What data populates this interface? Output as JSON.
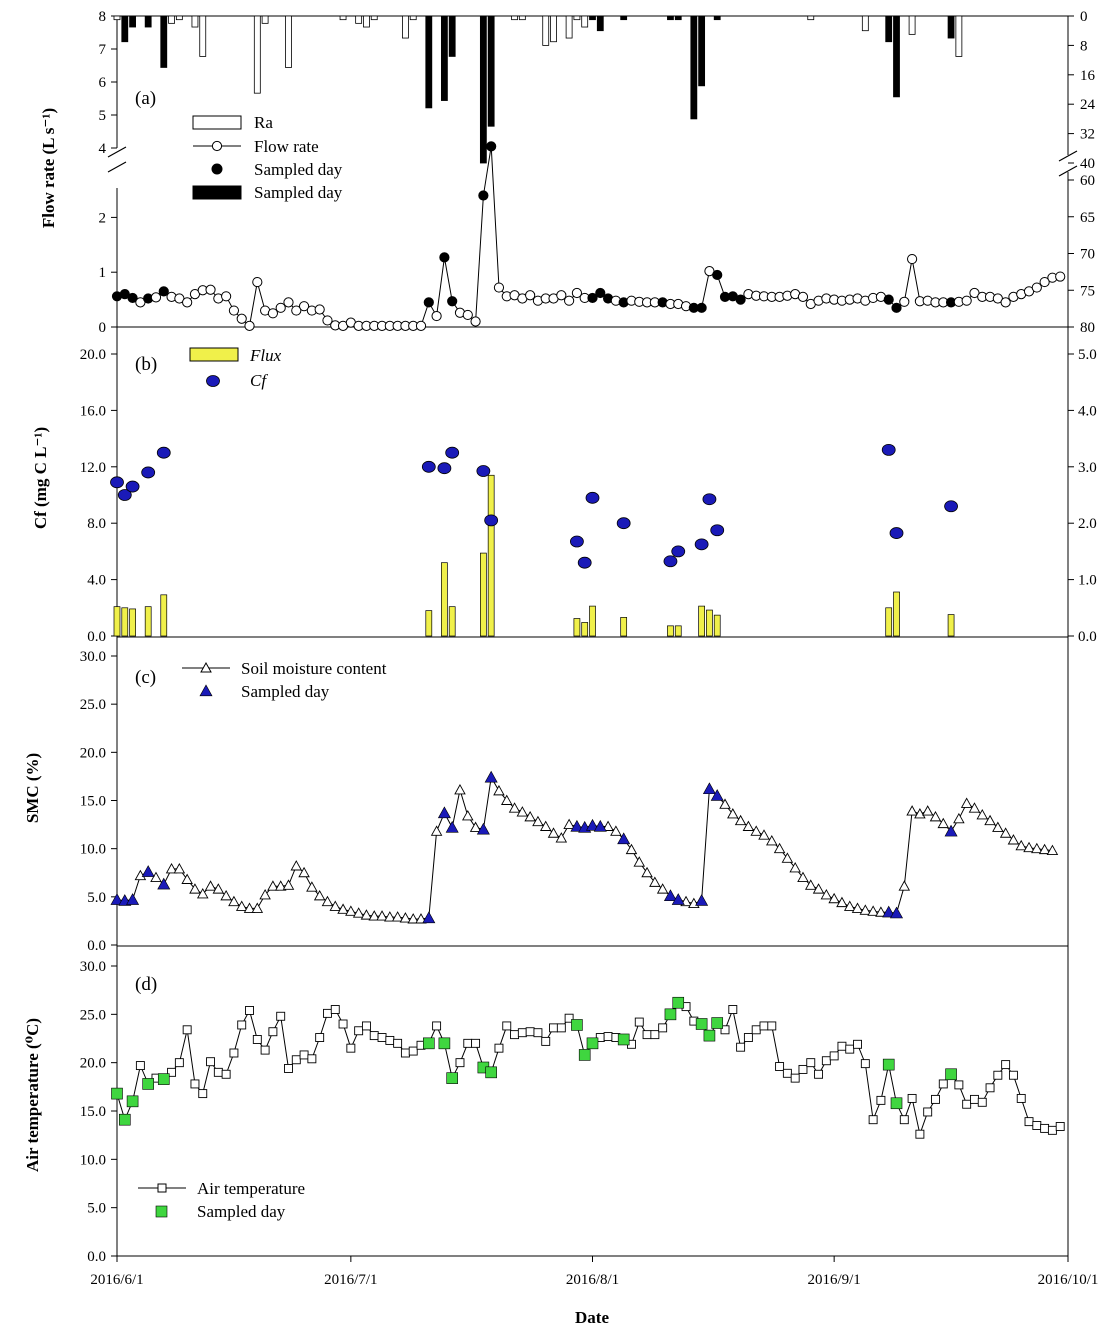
{
  "chart_data": {
    "type": "line",
    "dates": [
      "2016/6/1",
      "2016/6/2",
      "2016/6/3",
      "2016/6/4",
      "2016/6/5",
      "2016/6/6",
      "2016/6/7",
      "2016/6/8",
      "2016/6/9",
      "2016/6/10",
      "2016/6/11",
      "2016/6/12",
      "2016/6/13",
      "2016/6/14",
      "2016/6/15",
      "2016/6/16",
      "2016/6/17",
      "2016/6/18",
      "2016/6/19",
      "2016/6/20",
      "2016/6/21",
      "2016/6/22",
      "2016/6/23",
      "2016/6/24",
      "2016/6/25",
      "2016/6/26",
      "2016/6/27",
      "2016/6/28",
      "2016/6/29",
      "2016/6/30",
      "2016/7/1",
      "2016/7/2",
      "2016/7/3",
      "2016/7/4",
      "2016/7/5",
      "2016/7/6",
      "2016/7/7",
      "2016/7/8",
      "2016/7/9",
      "2016/7/10",
      "2016/7/11",
      "2016/7/12",
      "2016/7/13",
      "2016/7/14",
      "2016/7/15",
      "2016/7/16",
      "2016/7/17",
      "2016/7/18",
      "2016/7/19",
      "2016/7/20",
      "2016/7/21",
      "2016/7/22",
      "2016/7/23",
      "2016/7/24",
      "2016/7/25",
      "2016/7/26",
      "2016/7/27",
      "2016/7/28",
      "2016/7/29",
      "2016/7/30",
      "2016/7/31",
      "2016/8/1",
      "2016/8/2",
      "2016/8/3",
      "2016/8/4",
      "2016/8/5",
      "2016/8/6",
      "2016/8/7",
      "2016/8/8",
      "2016/8/9",
      "2016/8/10",
      "2016/8/11",
      "2016/8/12",
      "2016/8/13",
      "2016/8/14",
      "2016/8/15",
      "2016/8/16",
      "2016/8/17",
      "2016/8/18",
      "2016/8/19",
      "2016/8/20",
      "2016/8/21",
      "2016/8/22",
      "2016/8/23",
      "2016/8/24",
      "2016/8/25",
      "2016/8/26",
      "2016/8/27",
      "2016/8/28",
      "2016/8/29",
      "2016/8/30",
      "2016/8/31",
      "2016/9/1",
      "2016/9/2",
      "2016/9/3",
      "2016/9/4",
      "2016/9/5",
      "2016/9/6",
      "2016/9/7",
      "2016/9/8",
      "2016/9/9",
      "2016/9/10",
      "2016/9/11",
      "2016/9/12",
      "2016/9/13",
      "2016/9/14",
      "2016/9/15",
      "2016/9/16",
      "2016/9/17",
      "2016/9/18",
      "2016/9/19",
      "2016/9/20",
      "2016/9/21",
      "2016/9/22",
      "2016/9/23",
      "2016/9/24",
      "2016/9/25",
      "2016/9/26",
      "2016/9/27",
      "2016/9/28",
      "2016/9/29",
      "2016/9/30",
      "2016/10/1"
    ],
    "x_tick_labels": [
      "2016/6/1",
      "2016/7/1",
      "2016/8/1",
      "2016/9/1",
      "2016/10/1"
    ],
    "xlabel": "Date",
    "panels": {
      "a": {
        "tag": "(a)",
        "ylabel": "Flow rate (L s⁻¹)",
        "left_ticks_lower": [
          "0",
          "1",
          "2"
        ],
        "left_ticks_upper": [
          "4",
          "5",
          "6",
          "7",
          "8"
        ],
        "right_ticks_upper": [
          "0",
          "8",
          "16",
          "24",
          "32",
          "40"
        ],
        "right_ticks_lower": [
          "60",
          "65",
          "70",
          "75",
          "80"
        ],
        "legend": [
          "Ra",
          "Flow rate",
          "Sampled day",
          "Sampled day"
        ],
        "flow_rate": [
          0.56,
          0.6,
          0.53,
          0.45,
          0.52,
          0.54,
          0.65,
          0.55,
          0.52,
          0.45,
          0.6,
          0.67,
          0.68,
          0.52,
          0.56,
          0.3,
          0.15,
          0.02,
          0.82,
          0.3,
          0.25,
          0.35,
          0.45,
          0.3,
          0.38,
          0.3,
          0.32,
          0.12,
          0.03,
          0.02,
          0.08,
          0.02,
          0.02,
          0.02,
          0.02,
          0.02,
          0.02,
          0.02,
          0.02,
          0.02,
          0.45,
          0.2,
          1.27,
          0.47,
          0.26,
          0.22,
          0.1,
          2.4,
          4.05,
          0.72,
          0.56,
          0.58,
          0.52,
          0.58,
          0.48,
          0.52,
          0.52,
          0.58,
          0.48,
          0.62,
          0.53,
          0.53,
          0.62,
          0.52,
          0.48,
          0.45,
          0.48,
          0.46,
          0.45,
          0.45,
          0.45,
          0.42,
          0.42,
          0.38,
          0.35,
          0.35,
          1.02,
          0.95,
          0.55,
          0.56,
          0.5,
          0.6,
          0.57,
          0.56,
          0.55,
          0.55,
          0.57,
          0.6,
          0.55,
          0.42,
          0.48,
          0.52,
          0.5,
          0.48,
          0.5,
          0.52,
          0.48,
          0.53,
          0.55,
          0.5,
          0.35,
          0.46,
          1.24,
          0.47,
          0.48,
          0.45,
          0.45,
          0.45,
          0.46,
          0.48,
          0.62,
          0.55,
          0.55,
          0.52,
          0.45,
          0.55,
          0.6,
          0.65,
          0.72,
          0.82,
          0.9,
          0.92
        ],
        "flow_sampled_days": [
          0,
          1,
          2,
          4,
          6,
          40,
          42,
          43,
          47,
          48,
          61,
          62,
          63,
          65,
          70,
          74,
          75,
          77,
          78,
          79,
          80,
          99,
          100,
          107
        ],
        "rainfall_mm": [
          {
            "day": 0,
            "v": 1
          },
          {
            "day": 1,
            "v": 7
          },
          {
            "day": 2,
            "v": 3
          },
          {
            "day": 4,
            "v": 3
          },
          {
            "day": 6,
            "v": 14
          },
          {
            "day": 7,
            "v": 2
          },
          {
            "day": 8,
            "v": 1
          },
          {
            "day": 10,
            "v": 3
          },
          {
            "day": 11,
            "v": 11
          },
          {
            "day": 18,
            "v": 21
          },
          {
            "day": 19,
            "v": 2
          },
          {
            "day": 22,
            "v": 14
          },
          {
            "day": 29,
            "v": 1
          },
          {
            "day": 31,
            "v": 2
          },
          {
            "day": 32,
            "v": 3
          },
          {
            "day": 33,
            "v": 1
          },
          {
            "day": 37,
            "v": 6
          },
          {
            "day": 38,
            "v": 1
          },
          {
            "day": 40,
            "v": 25
          },
          {
            "day": 42,
            "v": 23
          },
          {
            "day": 43,
            "v": 11
          },
          {
            "day": 47,
            "v": 40
          },
          {
            "day": 48,
            "v": 30
          },
          {
            "day": 51,
            "v": 1
          },
          {
            "day": 52,
            "v": 1
          },
          {
            "day": 55,
            "v": 8
          },
          {
            "day": 56,
            "v": 7
          },
          {
            "day": 58,
            "v": 6
          },
          {
            "day": 59,
            "v": 1
          },
          {
            "day": 60,
            "v": 3
          },
          {
            "day": 61,
            "v": 1
          },
          {
            "day": 62,
            "v": 4
          },
          {
            "day": 65,
            "v": 1
          },
          {
            "day": 71,
            "v": 1
          },
          {
            "day": 72,
            "v": 1
          },
          {
            "day": 74,
            "v": 28
          },
          {
            "day": 75,
            "v": 19
          },
          {
            "day": 77,
            "v": 1
          },
          {
            "day": 89,
            "v": 1
          },
          {
            "day": 96,
            "v": 4
          },
          {
            "day": 99,
            "v": 7
          },
          {
            "day": 100,
            "v": 22
          },
          {
            "day": 102,
            "v": 5
          },
          {
            "day": 107,
            "v": 6
          },
          {
            "day": 108,
            "v": 11
          }
        ],
        "rain_sampled_days": [
          1,
          2,
          4,
          6,
          40,
          42,
          43,
          47,
          48,
          61,
          62,
          63,
          65,
          71,
          72,
          74,
          75,
          77,
          99,
          100,
          107
        ]
      },
      "b": {
        "tag": "(b)",
        "ylabel": "Cf (mg C L⁻¹)",
        "left_ticks": [
          "0.0",
          "4.0",
          "8.0",
          "12.0",
          "16.0",
          "20.0"
        ],
        "right_ticks": [
          "0.0",
          "1.0",
          "2.0",
          "3.0",
          "4.0",
          "5.0"
        ],
        "legend": [
          "Flux",
          "Cf"
        ],
        "cf": [
          {
            "day": 0,
            "v": 10.9
          },
          {
            "day": 1,
            "v": 10.0
          },
          {
            "day": 2,
            "v": 10.6
          },
          {
            "day": 4,
            "v": 11.6
          },
          {
            "day": 6,
            "v": 13.0
          },
          {
            "day": 40,
            "v": 12.0
          },
          {
            "day": 42,
            "v": 11.9
          },
          {
            "day": 43,
            "v": 13.0
          },
          {
            "day": 47,
            "v": 11.7
          },
          {
            "day": 48,
            "v": 8.2
          },
          {
            "day": 59,
            "v": 6.7
          },
          {
            "day": 60,
            "v": 5.2
          },
          {
            "day": 61,
            "v": 9.8
          },
          {
            "day": 65,
            "v": 8.0
          },
          {
            "day": 71,
            "v": 5.3
          },
          {
            "day": 72,
            "v": 6.0
          },
          {
            "day": 75,
            "v": 6.5
          },
          {
            "day": 76,
            "v": 9.7
          },
          {
            "day": 77,
            "v": 7.5
          },
          {
            "day": 99,
            "v": 13.2
          },
          {
            "day": 100,
            "v": 7.3
          },
          {
            "day": 107,
            "v": 9.2
          }
        ],
        "flux": [
          {
            "day": 0,
            "v": 0.52
          },
          {
            "day": 1,
            "v": 0.5
          },
          {
            "day": 2,
            "v": 0.48
          },
          {
            "day": 4,
            "v": 0.52
          },
          {
            "day": 6,
            "v": 0.73
          },
          {
            "day": 40,
            "v": 0.45
          },
          {
            "day": 42,
            "v": 1.3
          },
          {
            "day": 43,
            "v": 0.52
          },
          {
            "day": 47,
            "v": 1.47
          },
          {
            "day": 48,
            "v": 2.85
          },
          {
            "day": 59,
            "v": 0.31
          },
          {
            "day": 60,
            "v": 0.24
          },
          {
            "day": 61,
            "v": 0.53
          },
          {
            "day": 65,
            "v": 0.33
          },
          {
            "day": 71,
            "v": 0.18
          },
          {
            "day": 72,
            "v": 0.18
          },
          {
            "day": 75,
            "v": 0.53
          },
          {
            "day": 76,
            "v": 0.46
          },
          {
            "day": 77,
            "v": 0.37
          },
          {
            "day": 99,
            "v": 0.5
          },
          {
            "day": 100,
            "v": 0.78
          },
          {
            "day": 107,
            "v": 0.38
          }
        ]
      },
      "c": {
        "tag": "(c)",
        "ylabel": "SMC (%)",
        "ticks": [
          "0.0",
          "5.0",
          "10.0",
          "15.0",
          "20.0",
          "25.0",
          "30.0"
        ],
        "legend": [
          "Soil moisture content",
          "Sampled day"
        ],
        "smc": [
          4.7,
          4.6,
          4.7,
          7.2,
          7.6,
          7.0,
          6.3,
          7.9,
          7.9,
          6.8,
          5.8,
          5.3,
          6.1,
          5.8,
          5.1,
          4.5,
          4.0,
          3.8,
          3.8,
          5.2,
          6.1,
          6.1,
          6.2,
          8.2,
          7.5,
          6.0,
          5.1,
          4.5,
          4.0,
          3.7,
          3.5,
          3.3,
          3.1,
          3.0,
          3.0,
          2.9,
          2.9,
          2.8,
          2.7,
          2.7,
          2.8,
          11.8,
          13.7,
          12.2,
          16.1,
          13.4,
          12.2,
          12.0,
          17.4,
          16.0,
          15.0,
          14.2,
          13.8,
          13.3,
          12.8,
          12.3,
          11.6,
          11.1,
          12.5,
          12.3,
          12.2,
          12.4,
          12.3,
          12.3,
          11.8,
          11.0,
          9.9,
          8.6,
          7.5,
          6.5,
          5.8,
          5.1,
          4.7,
          4.5,
          4.3,
          4.6,
          16.2,
          15.5,
          14.6,
          13.6,
          12.9,
          12.3,
          11.8,
          11.4,
          10.8,
          10.0,
          9.0,
          8.0,
          7.0,
          6.2,
          5.8,
          5.2,
          4.8,
          4.4,
          4.0,
          3.8,
          3.6,
          3.5,
          3.4,
          3.4,
          3.3,
          6.1,
          13.9,
          13.6,
          13.9,
          13.3,
          12.6,
          11.8,
          13.1,
          14.7,
          14.2,
          13.5,
          12.9,
          12.2,
          11.6,
          10.9,
          10.3,
          10.1,
          10.0,
          9.9,
          9.8
        ],
        "sampled_days": [
          0,
          1,
          2,
          4,
          6,
          40,
          42,
          43,
          47,
          48,
          59,
          60,
          61,
          62,
          65,
          71,
          72,
          75,
          76,
          77,
          99,
          100,
          107
        ]
      },
      "d": {
        "tag": "(d)",
        "ylabel": "Air temperature (⁰C)",
        "ticks": [
          "0.0",
          "5.0",
          "10.0",
          "15.0",
          "20.0",
          "25.0",
          "30.0"
        ],
        "legend": [
          "Air temperature",
          "Sampled day"
        ],
        "temp": [
          16.8,
          14.1,
          16.0,
          19.7,
          17.8,
          18.4,
          18.3,
          19.0,
          20.0,
          23.4,
          17.8,
          16.8,
          20.1,
          19.0,
          18.8,
          21.0,
          23.9,
          25.4,
          22.4,
          21.3,
          23.2,
          24.8,
          19.4,
          20.3,
          20.8,
          20.4,
          22.6,
          25.1,
          25.5,
          24.0,
          21.5,
          23.3,
          23.8,
          22.8,
          22.6,
          22.3,
          22.0,
          21.0,
          21.2,
          21.8,
          22.0,
          23.8,
          22.0,
          18.4,
          20.0,
          22.0,
          22.0,
          19.5,
          19.0,
          21.5,
          23.8,
          22.9,
          23.1,
          23.2,
          23.1,
          22.2,
          23.6,
          23.6,
          24.6,
          23.9,
          20.8,
          22.0,
          22.6,
          22.7,
          22.6,
          22.4,
          21.9,
          24.2,
          22.9,
          22.9,
          23.6,
          25.0,
          26.2,
          25.8,
          24.3,
          24.0,
          22.8,
          24.1,
          23.4,
          25.5,
          21.6,
          22.6,
          23.4,
          23.8,
          23.8,
          19.6,
          18.9,
          18.4,
          19.3,
          20.0,
          18.8,
          20.2,
          20.7,
          21.7,
          21.4,
          21.9,
          19.9,
          14.1,
          16.1,
          19.8,
          15.8,
          14.1,
          16.3,
          12.6,
          14.9,
          16.2,
          17.8,
          18.8,
          17.7,
          15.7,
          16.2,
          15.9,
          17.4,
          18.7,
          19.8,
          18.7,
          16.3,
          13.9,
          13.5,
          13.2,
          13.0,
          13.4
        ],
        "sampled_days": [
          0,
          1,
          2,
          4,
          6,
          40,
          42,
          43,
          47,
          48,
          59,
          60,
          61,
          65,
          71,
          72,
          75,
          76,
          77,
          99,
          100,
          107
        ]
      }
    }
  },
  "colors": {
    "flux_bar": "#f0f04a",
    "cf_marker": "#1a1ab8",
    "smc_sampled": "#1a1ab8",
    "temp_sampled": "#3fd63f"
  }
}
